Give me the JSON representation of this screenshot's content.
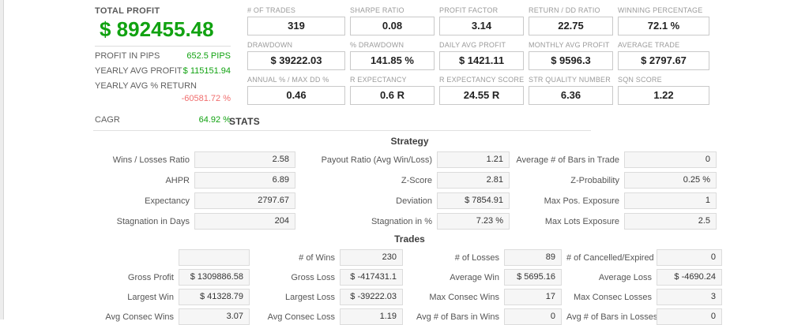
{
  "colors": {
    "green": "#11a211",
    "red": "#f06e6e"
  },
  "summary": {
    "title": "TOTAL PROFIT",
    "total": "$ 892455.48",
    "profit_in_pips_label": "PROFIT IN PIPS",
    "profit_in_pips_value": "652.5 PIPS",
    "yearly_avg_profit_label": "YEARLY AVG PROFIT",
    "yearly_avg_profit_value": "$ 115151.94",
    "yearly_avg_return_label": "YEARLY AVG % RETURN",
    "yearly_avg_return_value": "-60581.72 %",
    "cagr_label": "CAGR",
    "cagr_value": "64.92 %"
  },
  "metrics": [
    {
      "label": "# OF TRADES",
      "value": "319"
    },
    {
      "label": "SHARPE RATIO",
      "value": "0.08"
    },
    {
      "label": "PROFIT FACTOR",
      "value": "3.14"
    },
    {
      "label": "RETURN / DD RATIO",
      "value": "22.75"
    },
    {
      "label": "WINNING PERCENTAGE",
      "value": "72.1 %"
    },
    {
      "label": "DRAWDOWN",
      "value": "$ 39222.03"
    },
    {
      "label": "% DRAWDOWN",
      "value": "141.85 %"
    },
    {
      "label": "DAILY AVG PROFIT",
      "value": "$ 1421.11"
    },
    {
      "label": "MONTHLY AVG PROFIT",
      "value": "$ 9596.3"
    },
    {
      "label": "AVERAGE TRADE",
      "value": "$ 2797.67"
    },
    {
      "label": "ANNUAL % / MAX DD %",
      "value": "0.46"
    },
    {
      "label": "R EXPECTANCY",
      "value": "0.6 R"
    },
    {
      "label": "R EXPECTANCY SCORE",
      "value": "24.55 R"
    },
    {
      "label": "STR QUALITY NUMBER",
      "value": "6.36"
    },
    {
      "label": "SQN SCORE",
      "value": "1.22"
    }
  ],
  "stats_title": "STATS",
  "strategy": {
    "title": "Strategy",
    "pairs": [
      {
        "label": "Wins / Losses Ratio",
        "value": "2.58"
      },
      {
        "label": "Payout Ratio (Avg Win/Loss)",
        "value": "1.21"
      },
      {
        "label": "Average # of Bars in Trade",
        "value": "0"
      },
      {
        "label": "AHPR",
        "value": "6.89"
      },
      {
        "label": "Z-Score",
        "value": "2.81"
      },
      {
        "label": "Z-Probability",
        "value": "0.25 %"
      },
      {
        "label": "Expectancy",
        "value": "2797.67"
      },
      {
        "label": "Deviation",
        "value": "$ 7854.91"
      },
      {
        "label": "Max Pos. Exposure",
        "value": "1"
      },
      {
        "label": "Stagnation in Days",
        "value": "204"
      },
      {
        "label": "Stagnation in %",
        "value": "7.23 %"
      },
      {
        "label": "Max Lots Exposure",
        "value": "2.5"
      }
    ]
  },
  "trades": {
    "title": "Trades",
    "pairs": [
      {
        "label": "",
        "value": ""
      },
      {
        "label": "# of Wins",
        "value": "230"
      },
      {
        "label": "# of Losses",
        "value": "89"
      },
      {
        "label": "# of Cancelled/Expired",
        "value": "0"
      },
      {
        "label": "Gross Profit",
        "value": "$ 1309886.58"
      },
      {
        "label": "Gross Loss",
        "value": "$ -417431.1"
      },
      {
        "label": "Average Win",
        "value": "$ 5695.16"
      },
      {
        "label": "Average Loss",
        "value": "$ -4690.24"
      },
      {
        "label": "Largest Win",
        "value": "$ 41328.79"
      },
      {
        "label": "Largest Loss",
        "value": "$ -39222.03"
      },
      {
        "label": "Max Consec Wins",
        "value": "17"
      },
      {
        "label": "Max Consec Losses",
        "value": "3"
      },
      {
        "label": "Avg Consec Wins",
        "value": "3.07"
      },
      {
        "label": "Avg Consec Loss",
        "value": "1.19"
      },
      {
        "label": "Avg # of Bars in Wins",
        "value": "0"
      },
      {
        "label": "Avg # of Bars in Losses",
        "value": "0"
      }
    ]
  }
}
